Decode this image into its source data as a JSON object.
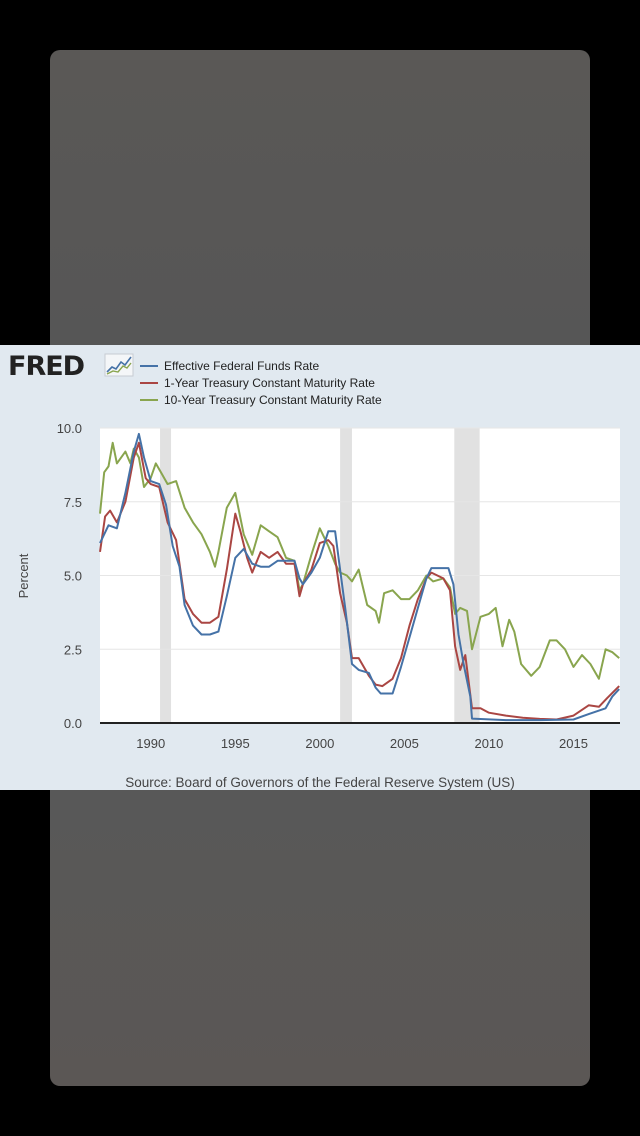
{
  "logo": {
    "text": "FRED"
  },
  "chart_data": {
    "type": "line",
    "title": "",
    "xlabel": "",
    "ylabel": "Percent",
    "xlim": [
      1987.0,
      2017.75
    ],
    "ylim": [
      0,
      10
    ],
    "yticks": [
      0,
      2.5,
      5,
      7.5,
      10
    ],
    "ytick_labels": [
      "0.0",
      "2.5",
      "5.0",
      "7.5",
      "10.0"
    ],
    "xticks": [
      1990,
      1995,
      2000,
      2005,
      2010,
      2015
    ],
    "xtick_labels": [
      "1990",
      "1995",
      "2000",
      "2005",
      "2010",
      "2015"
    ],
    "grid": true,
    "legend_position": "top",
    "recessions": [
      [
        1990.55,
        1991.2
      ],
      [
        2001.2,
        2001.9
      ],
      [
        2007.95,
        2009.45
      ]
    ],
    "series": [
      {
        "name": "Effective Federal Funds Rate",
        "color": "#4572a7",
        "points": [
          [
            1987.0,
            6.1
          ],
          [
            1987.5,
            6.7
          ],
          [
            1988.0,
            6.6
          ],
          [
            1988.5,
            7.8
          ],
          [
            1989.0,
            9.2
          ],
          [
            1989.3,
            9.8
          ],
          [
            1989.6,
            9.0
          ],
          [
            1990.0,
            8.2
          ],
          [
            1990.5,
            8.1
          ],
          [
            1990.9,
            7.4
          ],
          [
            1991.3,
            6.0
          ],
          [
            1991.7,
            5.3
          ],
          [
            1992.0,
            4.0
          ],
          [
            1992.5,
            3.3
          ],
          [
            1993.0,
            3.0
          ],
          [
            1993.5,
            3.0
          ],
          [
            1994.0,
            3.1
          ],
          [
            1994.5,
            4.3
          ],
          [
            1995.0,
            5.6
          ],
          [
            1995.5,
            5.9
          ],
          [
            1996.0,
            5.4
          ],
          [
            1996.5,
            5.3
          ],
          [
            1997.0,
            5.3
          ],
          [
            1997.5,
            5.5
          ],
          [
            1998.0,
            5.5
          ],
          [
            1998.5,
            5.5
          ],
          [
            1998.8,
            4.9
          ],
          [
            1999.0,
            4.7
          ],
          [
            1999.5,
            5.1
          ],
          [
            2000.0,
            5.6
          ],
          [
            2000.5,
            6.5
          ],
          [
            2000.9,
            6.5
          ],
          [
            2001.2,
            5.2
          ],
          [
            2001.5,
            3.9
          ],
          [
            2001.9,
            2.0
          ],
          [
            2002.3,
            1.8
          ],
          [
            2002.9,
            1.7
          ],
          [
            2003.3,
            1.2
          ],
          [
            2003.6,
            1.0
          ],
          [
            2004.3,
            1.0
          ],
          [
            2004.8,
            1.9
          ],
          [
            2005.3,
            2.9
          ],
          [
            2005.8,
            3.9
          ],
          [
            2006.3,
            4.9
          ],
          [
            2006.6,
            5.25
          ],
          [
            2007.6,
            5.25
          ],
          [
            2007.9,
            4.7
          ],
          [
            2008.2,
            3.0
          ],
          [
            2008.5,
            2.0
          ],
          [
            2008.9,
            0.9
          ],
          [
            2009.0,
            0.15
          ],
          [
            2011.0,
            0.1
          ],
          [
            2013.0,
            0.1
          ],
          [
            2015.0,
            0.12
          ],
          [
            2015.9,
            0.3
          ],
          [
            2016.9,
            0.5
          ],
          [
            2017.3,
            0.9
          ],
          [
            2017.7,
            1.15
          ]
        ]
      },
      {
        "name": "1-Year Treasury Constant Maturity Rate",
        "color": "#aa4643",
        "points": [
          [
            1987.0,
            5.8
          ],
          [
            1987.3,
            7.0
          ],
          [
            1987.6,
            7.2
          ],
          [
            1988.0,
            6.8
          ],
          [
            1988.5,
            7.5
          ],
          [
            1989.0,
            9.0
          ],
          [
            1989.3,
            9.5
          ],
          [
            1989.7,
            8.3
          ],
          [
            1990.0,
            8.1
          ],
          [
            1990.5,
            8.0
          ],
          [
            1991.0,
            6.8
          ],
          [
            1991.5,
            6.2
          ],
          [
            1992.0,
            4.2
          ],
          [
            1992.5,
            3.7
          ],
          [
            1993.0,
            3.4
          ],
          [
            1993.5,
            3.4
          ],
          [
            1994.0,
            3.6
          ],
          [
            1994.5,
            5.2
          ],
          [
            1995.0,
            7.1
          ],
          [
            1995.3,
            6.5
          ],
          [
            1995.7,
            5.6
          ],
          [
            1996.0,
            5.1
          ],
          [
            1996.5,
            5.8
          ],
          [
            1997.0,
            5.6
          ],
          [
            1997.5,
            5.8
          ],
          [
            1998.0,
            5.4
          ],
          [
            1998.5,
            5.4
          ],
          [
            1998.8,
            4.3
          ],
          [
            1999.0,
            4.7
          ],
          [
            1999.5,
            5.2
          ],
          [
            2000.0,
            6.1
          ],
          [
            2000.5,
            6.2
          ],
          [
            2000.8,
            6.0
          ],
          [
            2001.2,
            4.4
          ],
          [
            2001.6,
            3.4
          ],
          [
            2001.9,
            2.2
          ],
          [
            2002.3,
            2.2
          ],
          [
            2002.9,
            1.6
          ],
          [
            2003.3,
            1.3
          ],
          [
            2003.7,
            1.25
          ],
          [
            2004.3,
            1.5
          ],
          [
            2004.8,
            2.2
          ],
          [
            2005.3,
            3.3
          ],
          [
            2005.8,
            4.2
          ],
          [
            2006.3,
            4.9
          ],
          [
            2006.6,
            5.1
          ],
          [
            2007.3,
            4.9
          ],
          [
            2007.7,
            4.5
          ],
          [
            2008.0,
            2.6
          ],
          [
            2008.3,
            1.8
          ],
          [
            2008.6,
            2.3
          ],
          [
            2009.0,
            0.5
          ],
          [
            2009.5,
            0.5
          ],
          [
            2010.0,
            0.35
          ],
          [
            2011.0,
            0.25
          ],
          [
            2012.0,
            0.18
          ],
          [
            2013.0,
            0.14
          ],
          [
            2014.0,
            0.12
          ],
          [
            2015.0,
            0.25
          ],
          [
            2015.9,
            0.6
          ],
          [
            2016.5,
            0.55
          ],
          [
            2017.0,
            0.85
          ],
          [
            2017.7,
            1.25
          ]
        ]
      },
      {
        "name": "10-Year Treasury Constant Maturity Rate",
        "color": "#89a54e",
        "points": [
          [
            1987.0,
            7.1
          ],
          [
            1987.25,
            8.5
          ],
          [
            1987.5,
            8.7
          ],
          [
            1987.75,
            9.5
          ],
          [
            1988.0,
            8.8
          ],
          [
            1988.5,
            9.2
          ],
          [
            1988.8,
            8.8
          ],
          [
            1989.0,
            9.3
          ],
          [
            1989.3,
            9.0
          ],
          [
            1989.6,
            8.0
          ],
          [
            1990.0,
            8.3
          ],
          [
            1990.3,
            8.8
          ],
          [
            1990.6,
            8.5
          ],
          [
            1991.0,
            8.1
          ],
          [
            1991.5,
            8.2
          ],
          [
            1992.0,
            7.3
          ],
          [
            1992.5,
            6.8
          ],
          [
            1993.0,
            6.4
          ],
          [
            1993.5,
            5.8
          ],
          [
            1993.8,
            5.3
          ],
          [
            1994.0,
            5.8
          ],
          [
            1994.5,
            7.3
          ],
          [
            1995.0,
            7.8
          ],
          [
            1995.5,
            6.4
          ],
          [
            1996.0,
            5.7
          ],
          [
            1996.5,
            6.7
          ],
          [
            1997.0,
            6.5
          ],
          [
            1997.5,
            6.3
          ],
          [
            1998.0,
            5.6
          ],
          [
            1998.5,
            5.5
          ],
          [
            1998.8,
            4.5
          ],
          [
            1999.0,
            4.7
          ],
          [
            1999.5,
            5.7
          ],
          [
            2000.0,
            6.6
          ],
          [
            2000.5,
            6.0
          ],
          [
            2000.9,
            5.4
          ],
          [
            2001.2,
            5.1
          ],
          [
            2001.6,
            5.0
          ],
          [
            2001.9,
            4.8
          ],
          [
            2002.3,
            5.2
          ],
          [
            2002.8,
            4.0
          ],
          [
            2003.3,
            3.8
          ],
          [
            2003.5,
            3.4
          ],
          [
            2003.8,
            4.4
          ],
          [
            2004.3,
            4.5
          ],
          [
            2004.8,
            4.2
          ],
          [
            2005.3,
            4.2
          ],
          [
            2005.8,
            4.5
          ],
          [
            2006.3,
            5.0
          ],
          [
            2006.7,
            4.8
          ],
          [
            2007.3,
            4.9
          ],
          [
            2007.7,
            4.6
          ],
          [
            2008.0,
            3.7
          ],
          [
            2008.3,
            3.9
          ],
          [
            2008.7,
            3.8
          ],
          [
            2009.0,
            2.5
          ],
          [
            2009.5,
            3.6
          ],
          [
            2010.0,
            3.7
          ],
          [
            2010.4,
            3.9
          ],
          [
            2010.8,
            2.6
          ],
          [
            2011.2,
            3.5
          ],
          [
            2011.5,
            3.1
          ],
          [
            2011.9,
            2.0
          ],
          [
            2012.5,
            1.6
          ],
          [
            2013.0,
            1.9
          ],
          [
            2013.6,
            2.8
          ],
          [
            2014.0,
            2.8
          ],
          [
            2014.5,
            2.5
          ],
          [
            2015.0,
            1.9
          ],
          [
            2015.5,
            2.3
          ],
          [
            2016.0,
            2.0
          ],
          [
            2016.5,
            1.5
          ],
          [
            2016.9,
            2.5
          ],
          [
            2017.3,
            2.4
          ],
          [
            2017.7,
            2.2
          ]
        ]
      }
    ]
  },
  "source_text": "Source: Board of Governors of the Federal Reserve System (US)"
}
